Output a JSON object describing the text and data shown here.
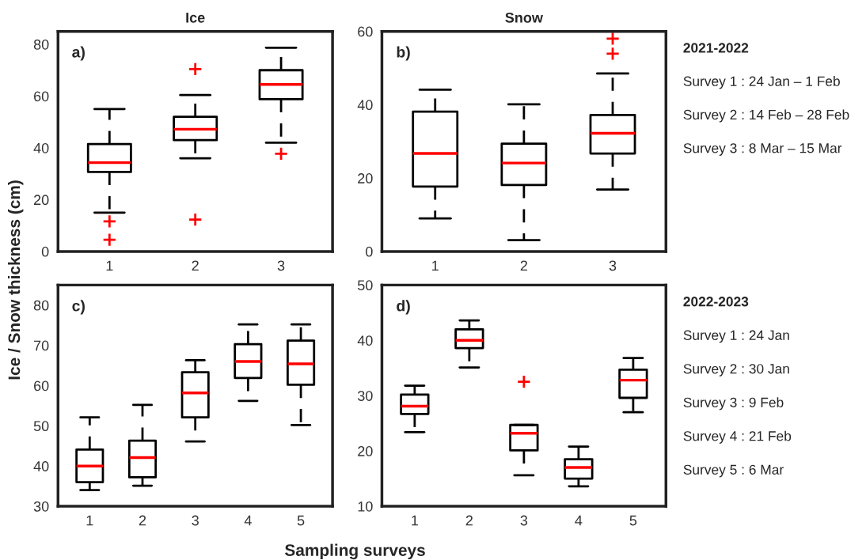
{
  "chart_data": [
    {
      "type": "box",
      "title": "Ice",
      "ylabel": "Ice / Snow thickness (cm)",
      "categories": [
        "1",
        "2",
        "3"
      ],
      "ylim": [
        0,
        85
      ],
      "yticks": [
        0,
        20,
        40,
        60,
        80
      ],
      "grid": false,
      "annotations": [
        "a)"
      ],
      "boxes": [
        {
          "low": 15,
          "q1": 30.7,
          "median": 34.3,
          "q3": 41.5,
          "high": 55,
          "outliers": [
            11.6,
            4.5
          ]
        },
        {
          "low": 36,
          "q1": 43,
          "median": 47.2,
          "q3": 52,
          "high": 60.4,
          "outliers": [
            70.4,
            12.3
          ]
        },
        {
          "low": 42,
          "q1": 58.8,
          "median": 64.5,
          "q3": 70,
          "high": 78.7,
          "outliers": [
            37.7
          ]
        }
      ]
    },
    {
      "type": "box",
      "title": "Snow",
      "categories": [
        "1",
        "2",
        "3"
      ],
      "ylim": [
        0,
        60
      ],
      "yticks": [
        0,
        20,
        40,
        60
      ],
      "grid": false,
      "annotations": [
        "b)",
        "2021-2022",
        "Survey 1 : 24 Jan – 1 Feb",
        "Survey 2 : 14 Feb – 28 Feb",
        "Survey 3 : 8 Mar – 15 Mar"
      ],
      "boxes": [
        {
          "low": 9,
          "q1": 17.7,
          "median": 26.7,
          "q3": 38.1,
          "high": 44.1
        },
        {
          "low": 3.1,
          "q1": 18.1,
          "median": 24.1,
          "q3": 29.4,
          "high": 40.1
        },
        {
          "low": 16.9,
          "q1": 26.7,
          "median": 32.2,
          "q3": 37.2,
          "high": 48.5,
          "outliers": [
            58,
            53.9
          ]
        }
      ]
    },
    {
      "type": "box",
      "xlabel": "Sampling surveys",
      "categories": [
        "1",
        "2",
        "3",
        "4",
        "5"
      ],
      "ylim": [
        30,
        85
      ],
      "yticks": [
        30,
        40,
        50,
        60,
        70,
        80
      ],
      "grid": false,
      "annotations": [
        "c)"
      ],
      "boxes": [
        {
          "low": 34,
          "q1": 36,
          "median": 40,
          "q3": 44.1,
          "high": 52.1
        },
        {
          "low": 35.1,
          "q1": 37.2,
          "median": 42.1,
          "q3": 46.3,
          "high": 55.2
        },
        {
          "low": 46.1,
          "q1": 52.1,
          "median": 58.2,
          "q3": 63.3,
          "high": 66.3
        },
        {
          "low": 56.2,
          "q1": 61.9,
          "median": 66,
          "q3": 70.3,
          "high": 75.2
        },
        {
          "low": 50.2,
          "q1": 60.2,
          "median": 65.4,
          "q3": 71.2,
          "high": 75.2
        }
      ]
    },
    {
      "type": "box",
      "categories": [
        "1",
        "2",
        "3",
        "4",
        "5"
      ],
      "ylim": [
        10,
        50
      ],
      "yticks": [
        10,
        20,
        30,
        40,
        50
      ],
      "grid": false,
      "annotations": [
        "d)",
        "2022-2023",
        "Survey 1 : 24 Jan",
        "Survey 2 : 30 Jan",
        "Survey 3 : 9 Feb",
        "Survey 4 : 21 Feb",
        "Survey 5 : 6 Mar"
      ],
      "boxes": [
        {
          "low": 23.4,
          "q1": 26.7,
          "median": 28.1,
          "q3": 30.2,
          "high": 31.8
        },
        {
          "low": 35.1,
          "q1": 38.6,
          "median": 40,
          "q3": 42,
          "high": 43.6
        },
        {
          "low": 15.6,
          "q1": 20.1,
          "median": 23.2,
          "q3": 24.7,
          "high": 24.7,
          "outliers": [
            32.5
          ]
        },
        {
          "low": 13.6,
          "q1": 15,
          "median": 17,
          "q3": 18.5,
          "high": 20.8
        },
        {
          "low": 27,
          "q1": 29.6,
          "median": 32.8,
          "q3": 34.7,
          "high": 36.8
        }
      ]
    }
  ]
}
